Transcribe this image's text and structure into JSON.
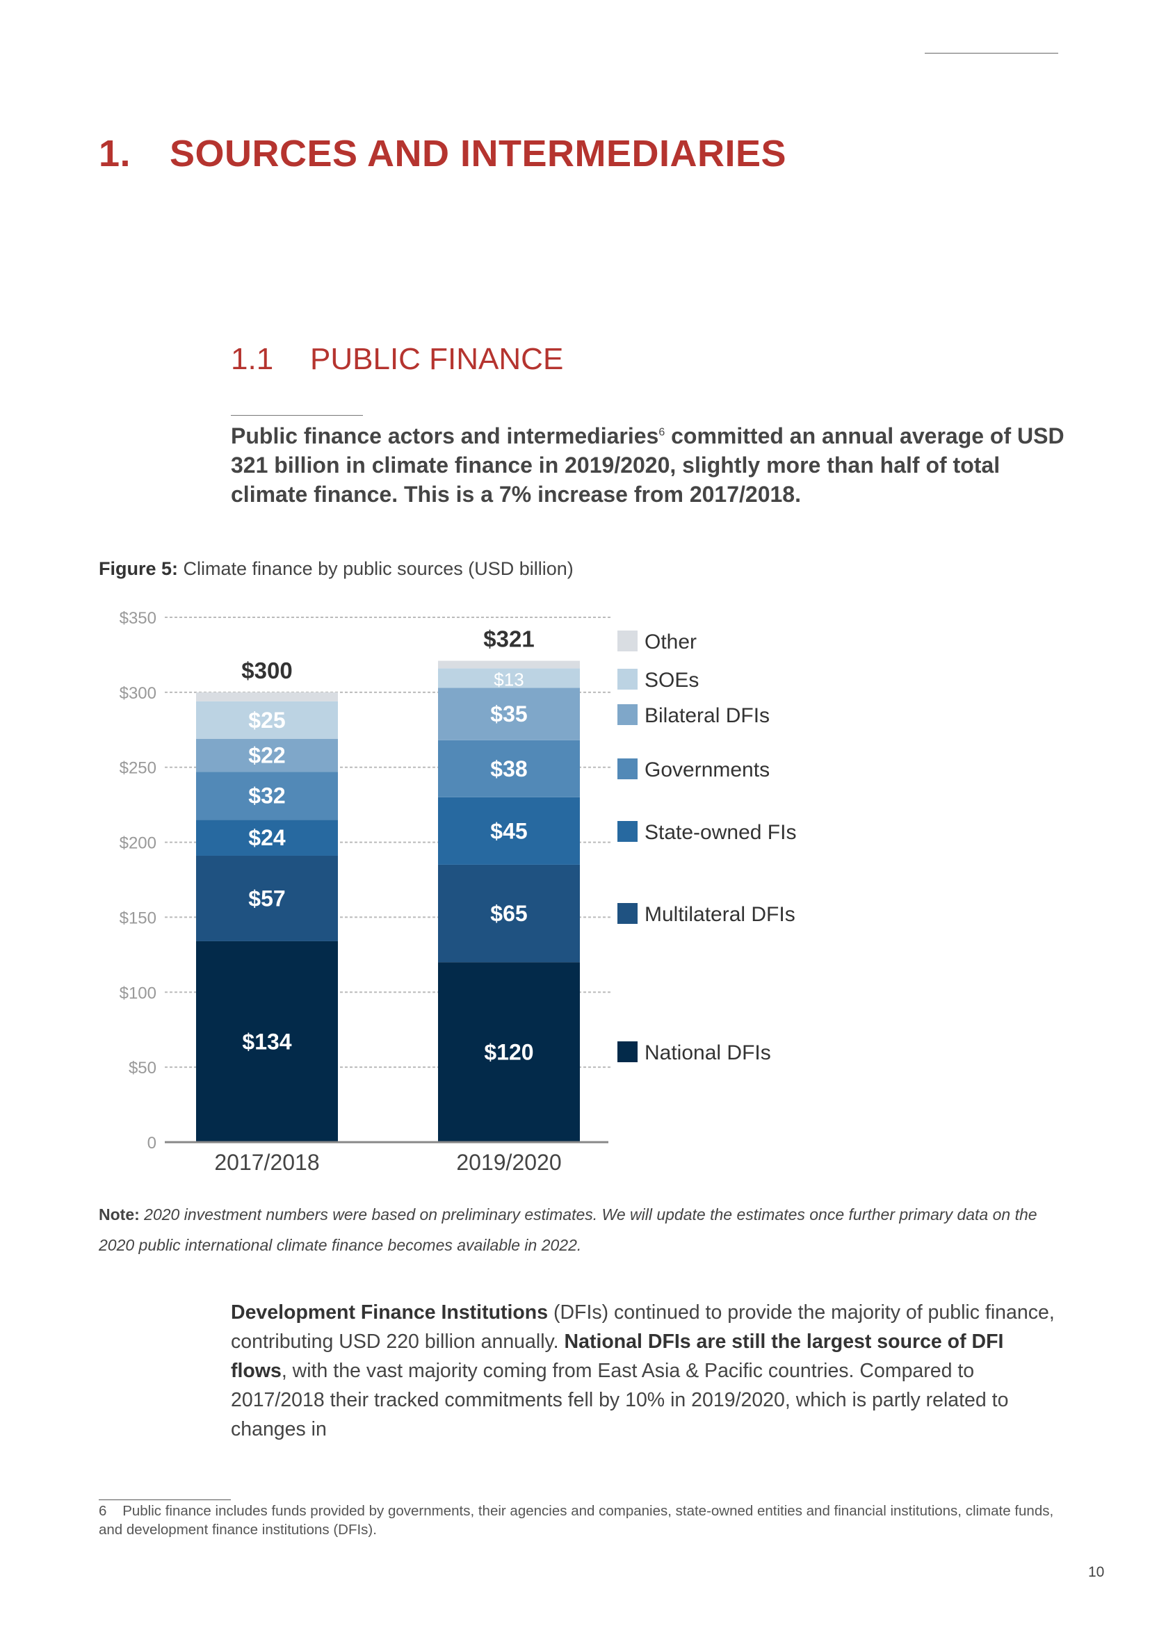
{
  "section": {
    "number": "1.",
    "title": "SOURCES AND INTERMEDIARIES"
  },
  "subsection": {
    "number": "1.1",
    "title": "PUBLIC FINANCE"
  },
  "lead": {
    "before": "Public finance actors and intermediaries",
    "footnote_ref": "6",
    "after": " committed an annual average of USD 321 billion in climate finance in 2019/2020, slightly more than half of total climate finance. This is a 7% increase from 2017/2018."
  },
  "figure_caption": {
    "label": "Figure 5:",
    "text": " Climate finance by public sources (USD billion)"
  },
  "chart_data": {
    "type": "bar",
    "stacked": true,
    "title": "Climate finance by public sources (USD billion)",
    "categories": [
      "2017/2018",
      "2019/2020"
    ],
    "totals": [
      300,
      321
    ],
    "total_labels": [
      "$300",
      "$321"
    ],
    "series": [
      {
        "name": "National DFIs",
        "values": [
          134,
          120
        ],
        "labels": [
          "$134",
          "$120"
        ],
        "color": "#032a4a"
      },
      {
        "name": "Multilateral DFIs",
        "values": [
          57,
          65
        ],
        "labels": [
          "$57",
          "$65"
        ],
        "color": "#1f5281"
      },
      {
        "name": "State-owned FIs",
        "values": [
          24,
          45
        ],
        "labels": [
          "$24",
          "$45"
        ],
        "color": "#2769a0"
      },
      {
        "name": "Governments",
        "values": [
          32,
          38
        ],
        "labels": [
          "$32",
          "$38"
        ],
        "color": "#5289b7"
      },
      {
        "name": "Bilateral DFIs",
        "values": [
          22,
          35
        ],
        "labels": [
          "$22",
          "$35"
        ],
        "color": "#7fa7c9"
      },
      {
        "name": "SOEs",
        "values": [
          25,
          13
        ],
        "labels": [
          "$25",
          "$13"
        ],
        "color": "#bcd3e3"
      },
      {
        "name": "Other",
        "values": [
          6,
          5
        ],
        "labels": [
          "",
          ""
        ],
        "color": "#d9dde2"
      }
    ],
    "ylim": [
      0,
      350
    ],
    "yticks": [
      0,
      50,
      100,
      150,
      200,
      250,
      300,
      350
    ],
    "ytick_labels": [
      "0",
      "$50",
      "$100",
      "$150",
      "$200",
      "$250",
      "$300",
      "$350"
    ],
    "grid": true,
    "legend_placement": "right",
    "xlabel": "",
    "ylabel": ""
  },
  "note": {
    "label": "Note:",
    "text": " 2020 investment numbers were based on preliminary estimates. We will update the estimates once further primary data on the 2020 public international climate finance becomes available in 2022."
  },
  "body": {
    "bold1": "Development Finance Institutions",
    "text1": " (DFIs) continued to provide the majority of public finance, contributing USD 220 billion annually. ",
    "bold2": "National DFIs are still the largest source of DFI flows",
    "text2": ", with the vast majority coming from East Asia & Pacific countries. Compared to 2017/2018 their tracked commitments fell by 10% in 2019/2020, which is partly related to changes in"
  },
  "footnote": {
    "number": "6",
    "text": "Public finance includes funds provided by governments, their agencies and companies, state-owned entities and financial institutions, climate funds, and development finance institutions (DFIs)."
  },
  "page_number": "10"
}
